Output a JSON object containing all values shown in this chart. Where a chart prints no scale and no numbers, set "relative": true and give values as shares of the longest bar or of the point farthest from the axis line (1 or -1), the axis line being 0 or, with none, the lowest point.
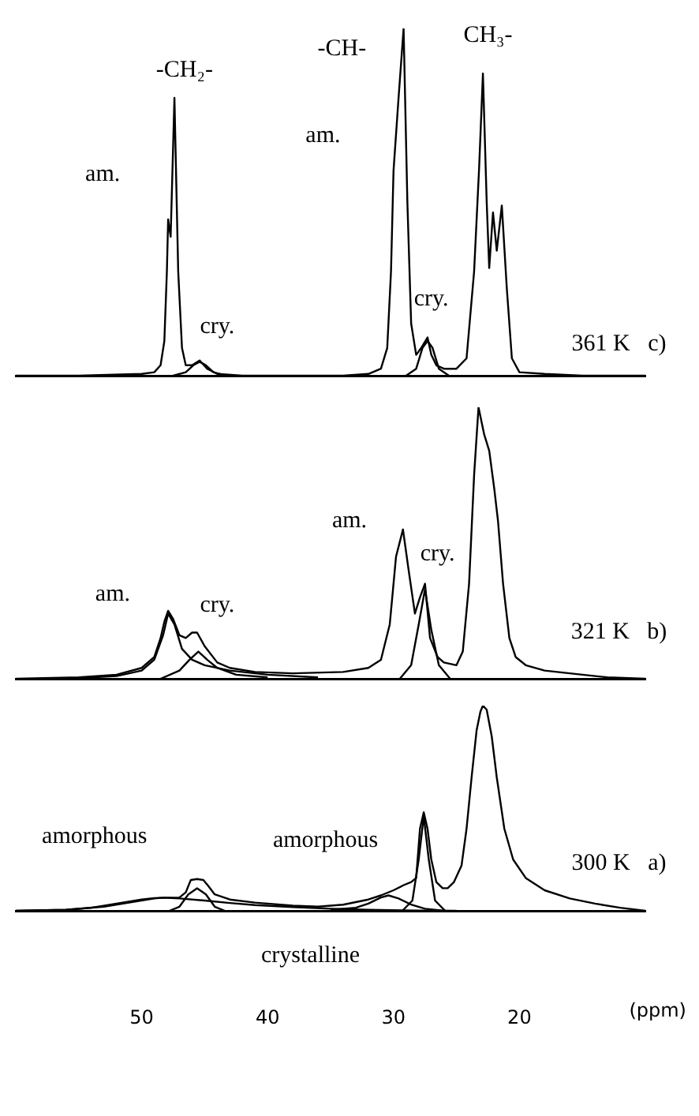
{
  "chart_data": [
    {
      "type": "line",
      "relative": true,
      "xlim": [
        60,
        10
      ],
      "xticks": [
        50,
        40,
        30,
        20
      ],
      "tick_labels": false,
      "marker": "none",
      "series": [
        {
          "color": "#000000",
          "x": [
            60,
            55,
            50,
            49,
            48.5,
            48.2,
            48,
            47.9,
            47.7,
            47.4,
            47.1,
            46.8,
            46.5,
            46,
            45.4,
            44.8,
            44,
            42,
            38,
            34,
            32,
            31,
            30.5,
            30.2,
            30,
            29.6,
            29.2,
            28.9,
            28.6,
            28.2,
            27.8,
            27.3,
            27,
            26.6,
            26,
            25,
            24.2,
            23.6,
            23.2,
            22.9,
            22.6,
            22.4,
            22.1,
            21.8,
            21.4,
            21,
            20.6,
            20,
            18,
            15,
            10
          ],
          "values": [
            0,
            0,
            0.005,
            0.01,
            0.03,
            0.1,
            0.3,
            0.45,
            0.4,
            0.8,
            0.3,
            0.08,
            0.03,
            0.03,
            0.044,
            0.02,
            0.005,
            0,
            0,
            0,
            0.005,
            0.02,
            0.08,
            0.3,
            0.59,
            0.8,
            1.0,
            0.5,
            0.15,
            0.06,
            0.08,
            0.11,
            0.06,
            0.03,
            0.02,
            0.02,
            0.05,
            0.3,
            0.6,
            0.87,
            0.5,
            0.31,
            0.47,
            0.36,
            0.49,
            0.25,
            0.05,
            0.01,
            0.005,
            0,
            0
          ]
        },
        {
          "color": "#000000",
          "x": [
            47.5,
            46.5,
            45.9,
            45.4,
            44.9,
            44.3,
            43.3
          ],
          "values": [
            0,
            0.01,
            0.03,
            0.04,
            0.03,
            0.01,
            0
          ]
        },
        {
          "color": "#000000",
          "x": [
            29,
            28.2,
            27.7,
            27.3,
            26.9,
            26.4,
            25.6
          ],
          "values": [
            0,
            0.02,
            0.08,
            0.1,
            0.08,
            0.02,
            0
          ]
        }
      ],
      "annotations": [
        "-CH₂-",
        "-CH-",
        "CH₃-",
        "am.",
        "am.",
        "cry.",
        "cry.",
        "361 K   c)"
      ]
    },
    {
      "type": "line",
      "relative": true,
      "xlim": [
        60,
        10
      ],
      "xticks": [
        50,
        40,
        30,
        20
      ],
      "tick_labels": false,
      "marker": "none",
      "series": [
        {
          "color": "#000000",
          "x": [
            60,
            55,
            52,
            50,
            49,
            48.5,
            48.2,
            47.9,
            47.5,
            47,
            46.5,
            46,
            45.6,
            45,
            44,
            43,
            41,
            38,
            34,
            32,
            31,
            30.3,
            29.8,
            29.25,
            28.8,
            28.3,
            27.9,
            27.5,
            27.1,
            26.5,
            26,
            25,
            24.5,
            24,
            23.6,
            23.25,
            22.8,
            22.4,
            22,
            21.7,
            21.3,
            20.8,
            20.3,
            19.5,
            18,
            16,
            13,
            10
          ],
          "values": [
            0,
            0.005,
            0.015,
            0.04,
            0.08,
            0.15,
            0.21,
            0.25,
            0.22,
            0.16,
            0.15,
            0.17,
            0.17,
            0.12,
            0.06,
            0.04,
            0.025,
            0.02,
            0.025,
            0.04,
            0.07,
            0.2,
            0.45,
            0.55,
            0.4,
            0.24,
            0.3,
            0.35,
            0.15,
            0.08,
            0.06,
            0.05,
            0.1,
            0.35,
            0.75,
            1.0,
            0.9,
            0.84,
            0.7,
            0.58,
            0.35,
            0.15,
            0.08,
            0.05,
            0.03,
            0.02,
            0.005,
            0
          ]
        },
        {
          "color": "#000000",
          "x": [
            48.5,
            47,
            46.2,
            45.5,
            44.8,
            44,
            42.5,
            40
          ],
          "values": [
            0,
            0.03,
            0.07,
            0.1,
            0.07,
            0.04,
            0.015,
            0.005
          ]
        },
        {
          "color": "#000000",
          "x": [
            56,
            52,
            50,
            49,
            48.3,
            47.9,
            47.4,
            46.8,
            46,
            45,
            43,
            40,
            36
          ],
          "values": [
            0,
            0.01,
            0.03,
            0.07,
            0.16,
            0.24,
            0.2,
            0.11,
            0.07,
            0.05,
            0.03,
            0.015,
            0.005
          ]
        },
        {
          "color": "#000000",
          "x": [
            29.5,
            28.6,
            28,
            27.5,
            27,
            26.4,
            25.5
          ],
          "values": [
            0,
            0.05,
            0.2,
            0.33,
            0.18,
            0.05,
            0
          ]
        }
      ],
      "annotations": [
        "am.",
        "cry.",
        "am.",
        "cry.",
        "321 K   b)"
      ]
    },
    {
      "type": "line",
      "relative": true,
      "xlim": [
        60,
        10
      ],
      "xticks": [
        50,
        40,
        30,
        20
      ],
      "xlabel": "(ppm)",
      "marker": "none",
      "series": [
        {
          "color": "#000000",
          "x": [
            60,
            56,
            54,
            52,
            50,
            49,
            48,
            47,
            46.5,
            46.1,
            45.6,
            45.1,
            44.7,
            44.2,
            43,
            41,
            38,
            36,
            34,
            32,
            31,
            30,
            29.2,
            28.6,
            28.2,
            27.9,
            27.6,
            27.3,
            27,
            26.6,
            26.1,
            25.7,
            25.2,
            24.6,
            24.2,
            23.8,
            23.4,
            23.1,
            22.9,
            22.6,
            22.2,
            21.8,
            21.2,
            20.5,
            19.5,
            18,
            16,
            14,
            12,
            10
          ],
          "values": [
            0,
            0.005,
            0.015,
            0.035,
            0.055,
            0.062,
            0.064,
            0.065,
            0.09,
            0.15,
            0.155,
            0.15,
            0.12,
            0.08,
            0.055,
            0.04,
            0.025,
            0.02,
            0.03,
            0.055,
            0.075,
            0.1,
            0.125,
            0.14,
            0.16,
            0.4,
            0.48,
            0.4,
            0.25,
            0.14,
            0.11,
            0.11,
            0.14,
            0.22,
            0.4,
            0.65,
            0.88,
            0.97,
            1.0,
            0.98,
            0.85,
            0.65,
            0.4,
            0.25,
            0.16,
            0.1,
            0.06,
            0.035,
            0.015,
            0
          ]
        },
        {
          "color": "#000000",
          "x": [
            60,
            56,
            53,
            51,
            49,
            48.3,
            47,
            45,
            43,
            41,
            38,
            35,
            32,
            28,
            25
          ],
          "values": [
            0,
            0.005,
            0.02,
            0.04,
            0.06,
            0.064,
            0.06,
            0.05,
            0.038,
            0.028,
            0.018,
            0.01,
            0.005,
            0.001,
            0
          ]
        },
        {
          "color": "#000000",
          "x": [
            47.8,
            47,
            46.3,
            45.6,
            44.9,
            44.2,
            43.4
          ],
          "values": [
            0,
            0.02,
            0.08,
            0.11,
            0.08,
            0.02,
            0
          ]
        },
        {
          "color": "#000000",
          "x": [
            35,
            33,
            32,
            31,
            30.4,
            29.6,
            28.6,
            27.5,
            26
          ],
          "values": [
            0.005,
            0.015,
            0.035,
            0.065,
            0.075,
            0.06,
            0.03,
            0.01,
            0
          ]
        },
        {
          "color": "#000000",
          "x": [
            29.3,
            28.5,
            28,
            27.6,
            27.2,
            26.7,
            25.9
          ],
          "values": [
            0,
            0.05,
            0.25,
            0.46,
            0.25,
            0.05,
            0
          ]
        }
      ],
      "annotations": [
        "amorphous",
        "amorphous",
        "300 K   a)",
        "crystalline"
      ]
    }
  ]
}
